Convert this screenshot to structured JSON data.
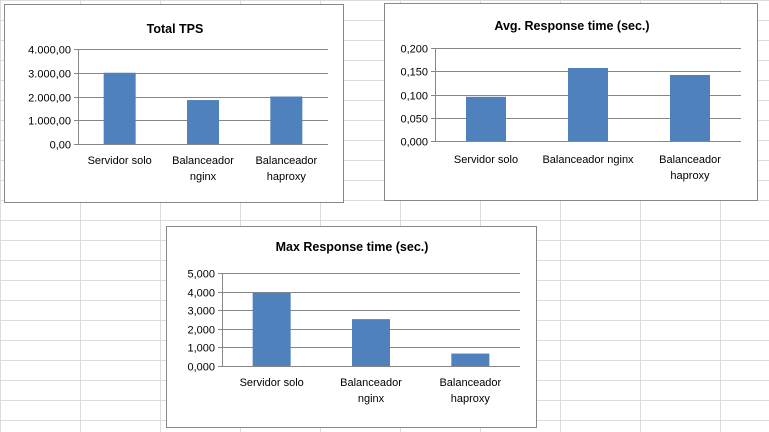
{
  "colors": {
    "bar": "#4F81BD",
    "gridline": "#868686",
    "chart_border": "#878787",
    "sheet_grid": "#DADCDD"
  },
  "chart_data": [
    {
      "type": "bar",
      "title": "Total TPS",
      "categories": [
        [
          "Servidor solo"
        ],
        [
          "Balanceador",
          "nginx"
        ],
        [
          "Balanceador",
          "haproxy"
        ]
      ],
      "values": [
        3000,
        1850,
        2000
      ],
      "ylim": [
        0,
        4000
      ],
      "yticks": [
        "0,00",
        "1.000,00",
        "2.000,00",
        "3.000,00",
        "4.000,00"
      ],
      "grid": true,
      "legend": "none"
    },
    {
      "type": "bar",
      "title": "Avg. Response time (sec.)",
      "categories": [
        [
          "Servidor solo"
        ],
        [
          "Balanceador nginx"
        ],
        [
          "Balanceador",
          "haproxy"
        ]
      ],
      "values": [
        0.095,
        0.157,
        0.142
      ],
      "ylim": [
        0,
        0.2
      ],
      "yticks": [
        "0,000",
        "0,050",
        "0,100",
        "0,150",
        "0,200"
      ],
      "grid": true,
      "legend": "none"
    },
    {
      "type": "bar",
      "title": "Max Response time (sec.)",
      "categories": [
        [
          "Servidor solo"
        ],
        [
          "Balanceador",
          "nginx"
        ],
        [
          "Balanceador",
          "haproxy"
        ]
      ],
      "values": [
        3.93,
        2.52,
        0.67
      ],
      "ylim": [
        0,
        5
      ],
      "yticks": [
        "0,000",
        "1,000",
        "2,000",
        "3,000",
        "4,000",
        "5,000"
      ],
      "grid": true,
      "legend": "none"
    }
  ]
}
